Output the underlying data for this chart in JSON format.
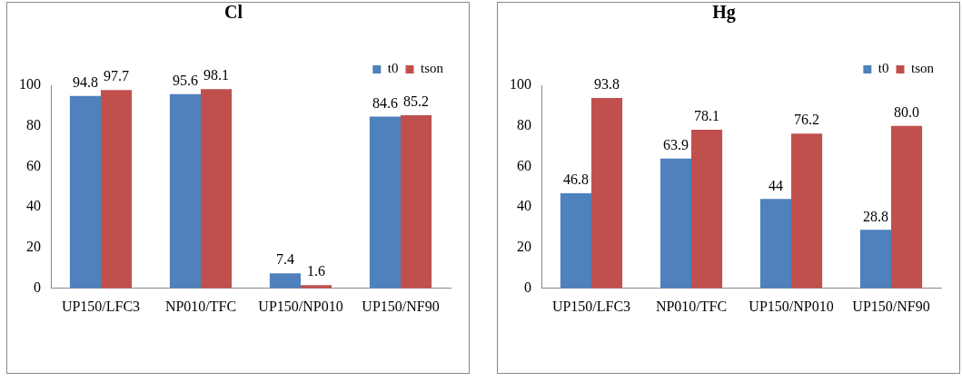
{
  "chart_data": [
    {
      "type": "bar",
      "title": "Cl",
      "categories": [
        "UP150/LFC3",
        "NP010/TFC",
        "UP150/NP010",
        "UP150/NF90"
      ],
      "series": [
        {
          "name": "t0",
          "color": "#4f81bd",
          "values": [
            94.8,
            95.6,
            7.4,
            84.6
          ],
          "value_labels": [
            "94.8",
            "95.6",
            "7.4",
            "84.6"
          ]
        },
        {
          "name": "tson",
          "color": "#c0504d",
          "values": [
            97.7,
            98.1,
            1.6,
            85.2
          ],
          "value_labels": [
            "97.7",
            "98.1",
            "1.6",
            "85.2"
          ]
        }
      ],
      "ylim": [
        0,
        100
      ],
      "yticks": [
        0,
        20,
        40,
        60,
        80,
        100
      ],
      "grid": false,
      "legend": "top right"
    },
    {
      "type": "bar",
      "title": "Hg",
      "categories": [
        "UP150/LFC3",
        "NP010/TFC",
        "UP150/NP010",
        "UP150/NF90"
      ],
      "series": [
        {
          "name": "t0",
          "color": "#4f81bd",
          "values": [
            46.8,
            63.9,
            44,
            28.8
          ],
          "value_labels": [
            "46.8",
            "63.9",
            "44",
            "28.8"
          ]
        },
        {
          "name": "tson",
          "color": "#c0504d",
          "values": [
            93.8,
            78.1,
            76.2,
            80.0
          ],
          "value_labels": [
            "93.8",
            "78.1",
            "76.2",
            "80.0"
          ]
        }
      ],
      "ylim": [
        0,
        100
      ],
      "yticks": [
        0,
        20,
        40,
        60,
        80,
        100
      ],
      "grid": false,
      "legend": "top right"
    }
  ]
}
